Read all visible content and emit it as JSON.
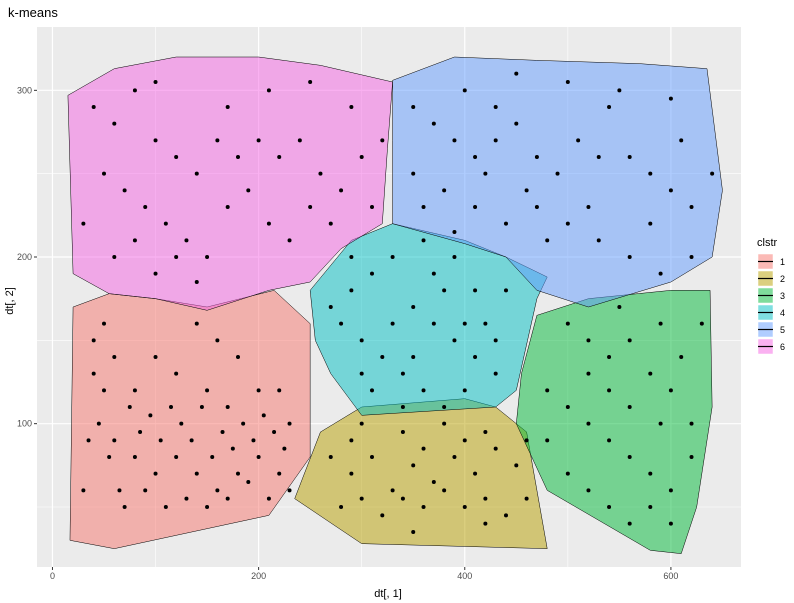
{
  "chart_data": {
    "type": "scatter",
    "title": "k-means",
    "xlabel": "dt[, 1]",
    "ylabel": "dt[, 2]",
    "xlim": [
      -15,
      668
    ],
    "ylim": [
      14,
      338
    ],
    "x_ticks": [
      0,
      200,
      400,
      600
    ],
    "y_ticks": [
      100,
      200,
      300
    ],
    "grid": true,
    "legend": {
      "title": "clstr",
      "position": "right",
      "entries": [
        "1",
        "2",
        "3",
        "4",
        "5",
        "6"
      ]
    },
    "series": [
      {
        "name": "1",
        "color": "#F8766D",
        "hull": [
          [
            60,
            25
          ],
          [
            210,
            45
          ],
          [
            250,
            80
          ],
          [
            250,
            160
          ],
          [
            215,
            180
          ],
          [
            150,
            170
          ],
          [
            100,
            175
          ],
          [
            55,
            178
          ],
          [
            20,
            170
          ],
          [
            17,
            30
          ]
        ],
        "points": [
          [
            40,
            150
          ],
          [
            60,
            140
          ],
          [
            80,
            120
          ],
          [
            100,
            140
          ],
          [
            120,
            130
          ],
          [
            140,
            160
          ],
          [
            160,
            150
          ],
          [
            180,
            140
          ],
          [
            200,
            120
          ],
          [
            60,
            90
          ],
          [
            80,
            80
          ],
          [
            100,
            70
          ],
          [
            120,
            80
          ],
          [
            140,
            70
          ],
          [
            160,
            60
          ],
          [
            180,
            70
          ],
          [
            200,
            80
          ],
          [
            220,
            70
          ],
          [
            230,
            100
          ],
          [
            220,
            120
          ],
          [
            70,
            50
          ],
          [
            90,
            60
          ],
          [
            110,
            50
          ],
          [
            130,
            55
          ],
          [
            150,
            50
          ],
          [
            170,
            55
          ],
          [
            190,
            65
          ],
          [
            210,
            55
          ],
          [
            230,
            60
          ],
          [
            45,
            100
          ],
          [
            50,
            120
          ],
          [
            55,
            80
          ],
          [
            65,
            60
          ],
          [
            75,
            110
          ],
          [
            85,
            95
          ],
          [
            95,
            105
          ],
          [
            105,
            90
          ],
          [
            115,
            110
          ],
          [
            125,
            100
          ],
          [
            135,
            90
          ],
          [
            145,
            110
          ],
          [
            155,
            80
          ],
          [
            165,
            95
          ],
          [
            175,
            85
          ],
          [
            185,
            100
          ],
          [
            195,
            90
          ],
          [
            205,
            105
          ],
          [
            215,
            95
          ],
          [
            225,
            85
          ],
          [
            30,
            60
          ],
          [
            35,
            90
          ],
          [
            40,
            130
          ],
          [
            50,
            160
          ],
          [
            150,
            120
          ],
          [
            170,
            110
          ]
        ]
      },
      {
        "name": "2",
        "color": "#B79F00",
        "hull": [
          [
            235,
            55
          ],
          [
            260,
            95
          ],
          [
            300,
            110
          ],
          [
            400,
            115
          ],
          [
            430,
            110
          ],
          [
            460,
            95
          ],
          [
            470,
            60
          ],
          [
            480,
            25
          ],
          [
            300,
            28
          ]
        ],
        "points": [
          [
            270,
            80
          ],
          [
            290,
            70
          ],
          [
            310,
            80
          ],
          [
            330,
            60
          ],
          [
            350,
            75
          ],
          [
            370,
            65
          ],
          [
            390,
            80
          ],
          [
            410,
            70
          ],
          [
            430,
            85
          ],
          [
            450,
            75
          ],
          [
            280,
            50
          ],
          [
            300,
            55
          ],
          [
            320,
            45
          ],
          [
            340,
            55
          ],
          [
            360,
            50
          ],
          [
            380,
            60
          ],
          [
            400,
            50
          ],
          [
            420,
            55
          ],
          [
            440,
            45
          ],
          [
            460,
            55
          ],
          [
            300,
            100
          ],
          [
            340,
            95
          ],
          [
            380,
            100
          ],
          [
            420,
            95
          ],
          [
            460,
            90
          ],
          [
            290,
            90
          ],
          [
            360,
            85
          ],
          [
            400,
            90
          ],
          [
            420,
            40
          ],
          [
            350,
            35
          ]
        ]
      },
      {
        "name": "3",
        "color": "#00BA38",
        "hull": [
          [
            470,
            165
          ],
          [
            520,
            175
          ],
          [
            600,
            180
          ],
          [
            638,
            180
          ],
          [
            640,
            110
          ],
          [
            625,
            50
          ],
          [
            610,
            22
          ],
          [
            580,
            24
          ],
          [
            480,
            60
          ],
          [
            450,
            100
          ],
          [
            455,
            130
          ]
        ],
        "points": [
          [
            500,
            160
          ],
          [
            520,
            150
          ],
          [
            540,
            140
          ],
          [
            560,
            150
          ],
          [
            580,
            130
          ],
          [
            600,
            120
          ],
          [
            620,
            100
          ],
          [
            480,
            120
          ],
          [
            500,
            110
          ],
          [
            520,
            100
          ],
          [
            540,
            90
          ],
          [
            560,
            80
          ],
          [
            580,
            70
          ],
          [
            600,
            60
          ],
          [
            620,
            80
          ],
          [
            500,
            70
          ],
          [
            520,
            60
          ],
          [
            540,
            50
          ],
          [
            560,
            40
          ],
          [
            580,
            50
          ],
          [
            600,
            40
          ],
          [
            520,
            130
          ],
          [
            560,
            110
          ],
          [
            590,
            100
          ],
          [
            610,
            140
          ],
          [
            630,
            160
          ],
          [
            550,
            170
          ],
          [
            590,
            160
          ],
          [
            480,
            90
          ],
          [
            540,
            120
          ]
        ]
      },
      {
        "name": "4",
        "color": "#00BFC4",
        "hull": [
          [
            250,
            180
          ],
          [
            290,
            210
          ],
          [
            330,
            220
          ],
          [
            400,
            210
          ],
          [
            440,
            200
          ],
          [
            480,
            188
          ],
          [
            470,
            175
          ],
          [
            450,
            120
          ],
          [
            430,
            110
          ],
          [
            300,
            105
          ],
          [
            270,
            130
          ],
          [
            255,
            150
          ]
        ],
        "points": [
          [
            290,
            180
          ],
          [
            310,
            190
          ],
          [
            330,
            200
          ],
          [
            350,
            170
          ],
          [
            370,
            160
          ],
          [
            390,
            150
          ],
          [
            410,
            140
          ],
          [
            430,
            130
          ],
          [
            300,
            150
          ],
          [
            320,
            140
          ],
          [
            340,
            130
          ],
          [
            360,
            120
          ],
          [
            380,
            110
          ],
          [
            400,
            120
          ],
          [
            420,
            160
          ],
          [
            440,
            180
          ],
          [
            280,
            160
          ],
          [
            310,
            120
          ],
          [
            330,
            160
          ],
          [
            350,
            140
          ],
          [
            370,
            190
          ],
          [
            390,
            200
          ],
          [
            410,
            180
          ],
          [
            430,
            150
          ],
          [
            270,
            170
          ],
          [
            360,
            210
          ],
          [
            300,
            130
          ],
          [
            340,
            110
          ],
          [
            380,
            180
          ],
          [
            400,
            160
          ]
        ]
      },
      {
        "name": "5",
        "color": "#619CFF",
        "hull": [
          [
            330,
            306
          ],
          [
            390,
            320
          ],
          [
            470,
            318
          ],
          [
            570,
            316
          ],
          [
            635,
            313
          ],
          [
            650,
            240
          ],
          [
            640,
            200
          ],
          [
            600,
            185
          ],
          [
            520,
            170
          ],
          [
            470,
            180
          ],
          [
            440,
            200
          ],
          [
            400,
            208
          ],
          [
            330,
            220
          ],
          [
            330,
            270
          ]
        ],
        "points": [
          [
            350,
            290
          ],
          [
            370,
            280
          ],
          [
            390,
            270
          ],
          [
            410,
            260
          ],
          [
            430,
            270
          ],
          [
            450,
            280
          ],
          [
            470,
            260
          ],
          [
            490,
            250
          ],
          [
            510,
            270
          ],
          [
            530,
            260
          ],
          [
            350,
            250
          ],
          [
            380,
            240
          ],
          [
            410,
            230
          ],
          [
            440,
            220
          ],
          [
            470,
            230
          ],
          [
            500,
            220
          ],
          [
            530,
            210
          ],
          [
            560,
            200
          ],
          [
            590,
            190
          ],
          [
            620,
            200
          ],
          [
            560,
            260
          ],
          [
            580,
            250
          ],
          [
            600,
            240
          ],
          [
            620,
            230
          ],
          [
            640,
            250
          ],
          [
            400,
            300
          ],
          [
            450,
            310
          ],
          [
            500,
            305
          ],
          [
            550,
            300
          ],
          [
            600,
            295
          ],
          [
            360,
            230
          ],
          [
            420,
            250
          ],
          [
            480,
            210
          ],
          [
            520,
            230
          ],
          [
            580,
            220
          ],
          [
            610,
            270
          ],
          [
            540,
            290
          ],
          [
            460,
            240
          ],
          [
            390,
            215
          ],
          [
            430,
            290
          ]
        ]
      },
      {
        "name": "6",
        "color": "#F564E3",
        "hull": [
          [
            15,
            297
          ],
          [
            60,
            313
          ],
          [
            120,
            320
          ],
          [
            200,
            320
          ],
          [
            260,
            315
          ],
          [
            330,
            305
          ],
          [
            325,
            265
          ],
          [
            320,
            220
          ],
          [
            280,
            205
          ],
          [
            250,
            185
          ],
          [
            210,
            180
          ],
          [
            150,
            168
          ],
          [
            100,
            175
          ],
          [
            55,
            178
          ],
          [
            20,
            190
          ]
        ],
        "points": [
          [
            40,
            290
          ],
          [
            60,
            280
          ],
          [
            80,
            300
          ],
          [
            100,
            270
          ],
          [
            120,
            260
          ],
          [
            140,
            250
          ],
          [
            160,
            270
          ],
          [
            180,
            260
          ],
          [
            200,
            270
          ],
          [
            220,
            260
          ],
          [
            240,
            270
          ],
          [
            260,
            250
          ],
          [
            280,
            240
          ],
          [
            300,
            260
          ],
          [
            320,
            270
          ],
          [
            50,
            250
          ],
          [
            70,
            240
          ],
          [
            90,
            230
          ],
          [
            110,
            220
          ],
          [
            130,
            210
          ],
          [
            150,
            200
          ],
          [
            170,
            230
          ],
          [
            190,
            240
          ],
          [
            210,
            220
          ],
          [
            230,
            210
          ],
          [
            250,
            230
          ],
          [
            270,
            220
          ],
          [
            290,
            200
          ],
          [
            310,
            230
          ],
          [
            60,
            200
          ],
          [
            80,
            210
          ],
          [
            100,
            190
          ],
          [
            120,
            200
          ],
          [
            140,
            185
          ],
          [
            30,
            220
          ],
          [
            170,
            290
          ],
          [
            210,
            300
          ],
          [
            250,
            305
          ],
          [
            290,
            290
          ],
          [
            100,
            305
          ]
        ]
      }
    ]
  }
}
